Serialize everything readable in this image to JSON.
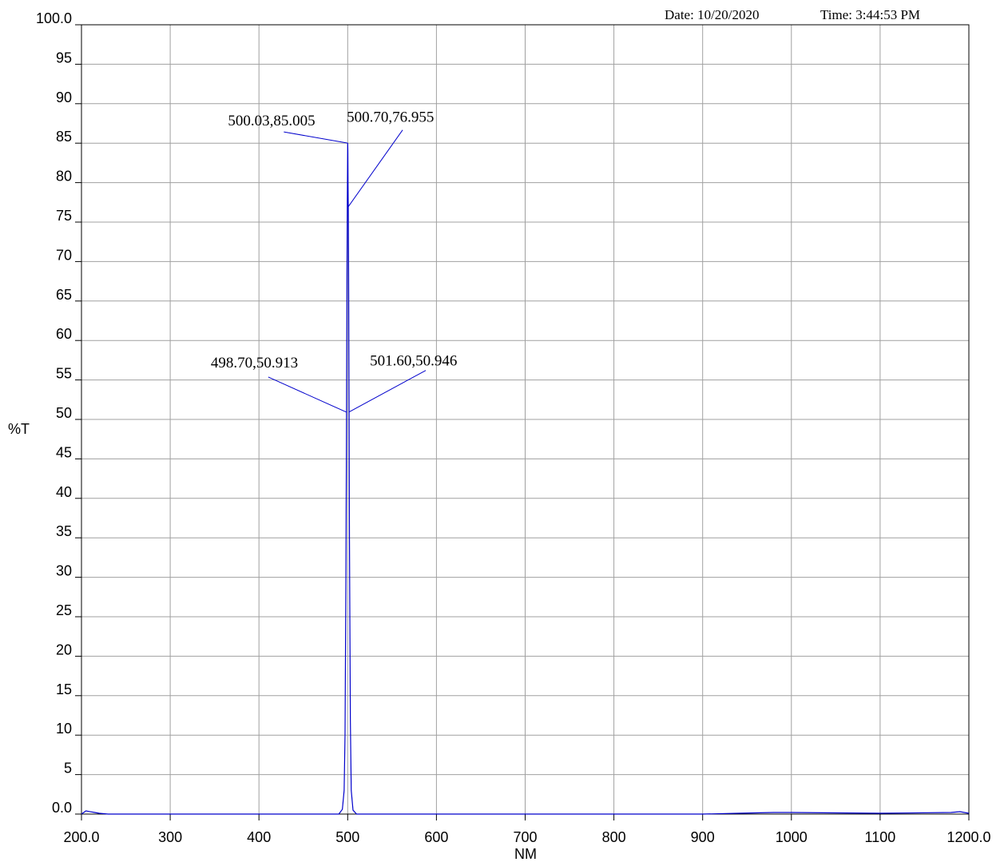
{
  "header": {
    "date": "Date: 10/20/2020",
    "time": "Time: 3:44:53 PM"
  },
  "chart_data": {
    "type": "line",
    "xlabel": "NM",
    "ylabel": "%T",
    "xlim": [
      200,
      1200
    ],
    "ylim": [
      0,
      100
    ],
    "x_ticks": [
      "200.0",
      "300",
      "400",
      "500",
      "600",
      "700",
      "800",
      "900",
      "1000",
      "1100",
      "1200.0"
    ],
    "x_tick_values": [
      200,
      300,
      400,
      500,
      600,
      700,
      800,
      900,
      1000,
      1100,
      1200
    ],
    "y_ticks": [
      "0.0",
      "5",
      "10",
      "15",
      "20",
      "25",
      "30",
      "35",
      "40",
      "45",
      "50",
      "55",
      "60",
      "65",
      "70",
      "75",
      "80",
      "85",
      "90",
      "95",
      "100.0"
    ],
    "y_tick_values": [
      0,
      5,
      10,
      15,
      20,
      25,
      30,
      35,
      40,
      45,
      50,
      55,
      60,
      65,
      70,
      75,
      80,
      85,
      90,
      95,
      100
    ],
    "grid": true,
    "line_color": "#0000cc",
    "series": [
      {
        "x": [
          200,
          205,
          210,
          215,
          220,
          230,
          260,
          400,
          490,
          494,
          496,
          497,
          498,
          498.7,
          499.2,
          499.6,
          500.03,
          500.2,
          500.4,
          500.6,
          500.7,
          501,
          501.3,
          501.6,
          502,
          503,
          504,
          506,
          510,
          600,
          900,
          940,
          980,
          1000,
          1100,
          1180,
          1190,
          1200
        ],
        "y": [
          0,
          0.4,
          0.3,
          0.2,
          0.1,
          0,
          0,
          0,
          0,
          0.6,
          3,
          10,
          30,
          50.913,
          68,
          78,
          85.005,
          84,
          80,
          77.5,
          76.955,
          70,
          60,
          50.946,
          35,
          12,
          3,
          0.5,
          0,
          0,
          0,
          0.1,
          0.2,
          0.2,
          0.1,
          0.2,
          0.3,
          0.1
        ]
      }
    ],
    "annotations": [
      {
        "label": "500.03,85.005",
        "x": 500.03,
        "y": 85.005
      },
      {
        "label": "500.70,76.955",
        "x": 500.7,
        "y": 76.955
      },
      {
        "label": "498.70,50.913",
        "x": 498.7,
        "y": 50.913
      },
      {
        "label": "501.60,50.946",
        "x": 501.6,
        "y": 50.946
      }
    ]
  }
}
